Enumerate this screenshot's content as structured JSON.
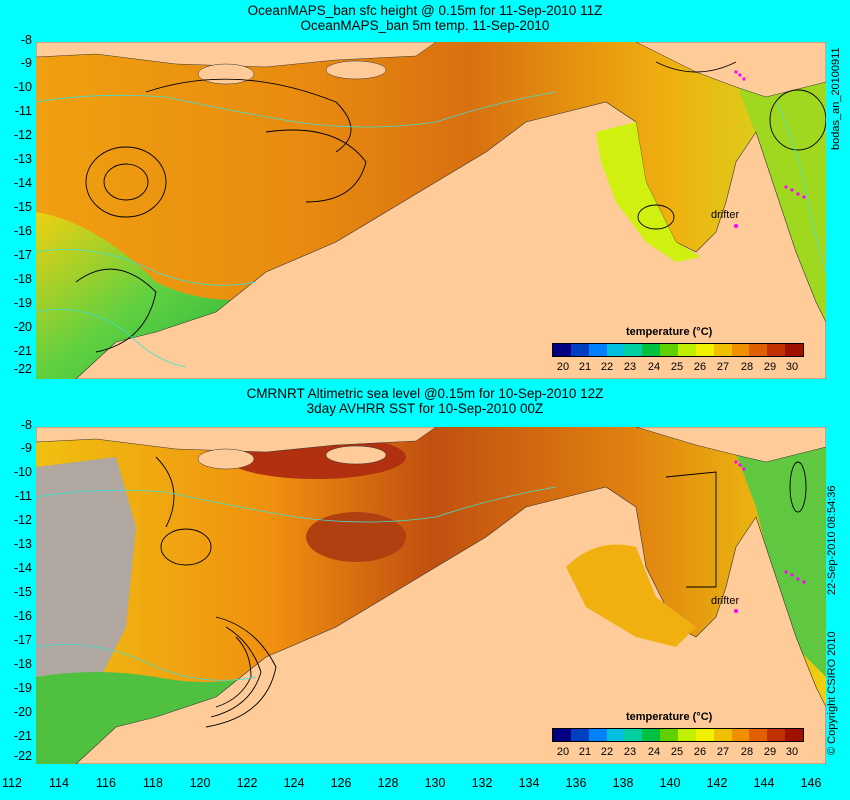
{
  "top": {
    "title_line1": "OceanMAPS_ban sfc height @ 0.15m for 11-Sep-2010 11Z",
    "title_line2": "OceanMAPS_ban 5m temp. 11-Sep-2010",
    "side_label": "bodas_an_20100911",
    "legend_title": "temperature (°C)",
    "drifter_label": "drifter"
  },
  "bottom": {
    "title_line1": "CMRNRT Altimetric sea level  @0.15m  for 10-Sep-2010 12Z",
    "title_line2": "3day AVHRR SST for 10-Sep-2010 00Z",
    "side_label_date": "22-Sep-2010 08:54:36",
    "side_label_copyright": "© Copyright CSIRO 2010",
    "legend_title": "temperature (°C)",
    "drifter_label": "drifter"
  },
  "axes": {
    "lat_ticks": [
      "-8",
      "-9",
      "-10",
      "-11",
      "-12",
      "-13",
      "-14",
      "-15",
      "-16",
      "-17",
      "-18",
      "-19",
      "-20",
      "-21",
      "-22"
    ],
    "lon_ticks": [
      "112",
      "114",
      "116",
      "118",
      "120",
      "122",
      "124",
      "126",
      "128",
      "130",
      "132",
      "134",
      "136",
      "138",
      "140",
      "142",
      "144",
      "146"
    ]
  },
  "colorbar": {
    "labels": [
      "20",
      "21",
      "22",
      "23",
      "24",
      "25",
      "26",
      "27",
      "28",
      "29",
      "30"
    ],
    "colors": [
      "#000080",
      "#0040c0",
      "#0080ff",
      "#00c0e0",
      "#00d0a0",
      "#00c040",
      "#60d000",
      "#c0f000",
      "#f0f000",
      "#f0c000",
      "#f09000",
      "#e06000",
      "#c03000",
      "#a01000"
    ]
  },
  "colors": {
    "land": "#ffcc99",
    "background": "#00ffff",
    "drifter_marker": "#ff00ff",
    "contour_cyan": "#40e0d0"
  }
}
